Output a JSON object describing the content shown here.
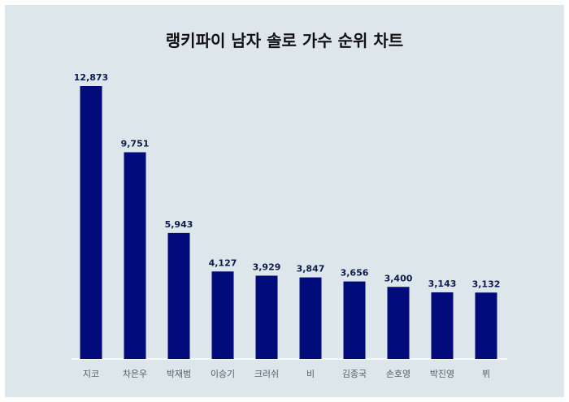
{
  "chart_data": {
    "type": "bar",
    "title": "랭키파이 남자 솔로 가수 순위 차트",
    "categories": [
      "지코",
      "차은우",
      "박재범",
      "이승기",
      "크러쉬",
      "비",
      "김종국",
      "손호영",
      "박진영",
      "뷔"
    ],
    "values": [
      12873,
      9751,
      5943,
      4127,
      3929,
      3847,
      3656,
      3400,
      3143,
      3132
    ],
    "value_labels": [
      "12,873",
      "9,751",
      "5,943",
      "4,127",
      "3,929",
      "3,847",
      "3,656",
      "3,400",
      "3,143",
      "3,132"
    ],
    "xlabel": "",
    "ylabel": "",
    "ylim": [
      0,
      12873
    ],
    "grid": false,
    "colors": {
      "bar": "#020b7a",
      "background": "#dce6eb",
      "value_label": "#0d1b4d"
    }
  }
}
